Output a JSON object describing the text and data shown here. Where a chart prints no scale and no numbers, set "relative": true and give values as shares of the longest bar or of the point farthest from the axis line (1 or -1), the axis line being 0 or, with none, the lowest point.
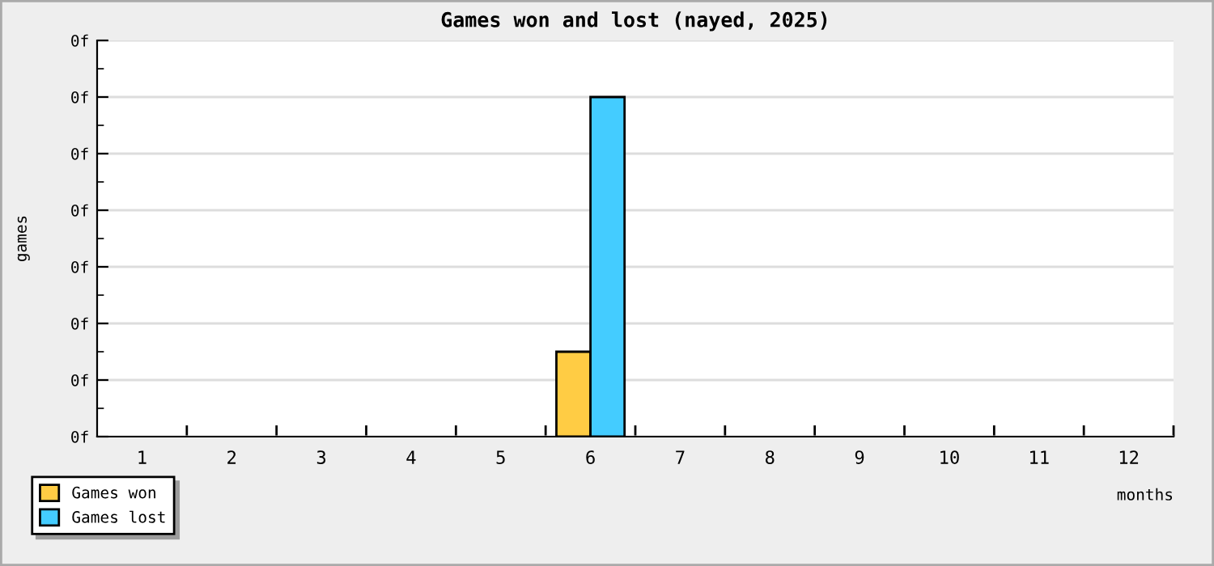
{
  "chart_data": {
    "type": "bar",
    "title": "Games won and lost (nayed, 2025)",
    "xlabel": "months",
    "ylabel": "games",
    "categories": [
      "1",
      "2",
      "3",
      "4",
      "5",
      "6",
      "7",
      "8",
      "9",
      "10",
      "11",
      "12"
    ],
    "series": [
      {
        "name": "Games won",
        "color": "#ffcc44",
        "values": [
          0,
          0,
          0,
          0,
          0,
          0.25,
          0,
          0,
          0,
          0,
          0,
          0
        ]
      },
      {
        "name": "Games lost",
        "color": "#44ccff",
        "values": [
          0,
          0,
          0,
          0,
          0,
          1,
          0,
          0,
          0,
          0,
          0,
          0
        ]
      }
    ],
    "relative": true,
    "annotations": [
      "0f",
      "0f",
      "0f",
      "0f",
      "0f",
      "0f",
      "0f",
      "0f"
    ],
    "grid": "y",
    "legend": "bottom left"
  }
}
